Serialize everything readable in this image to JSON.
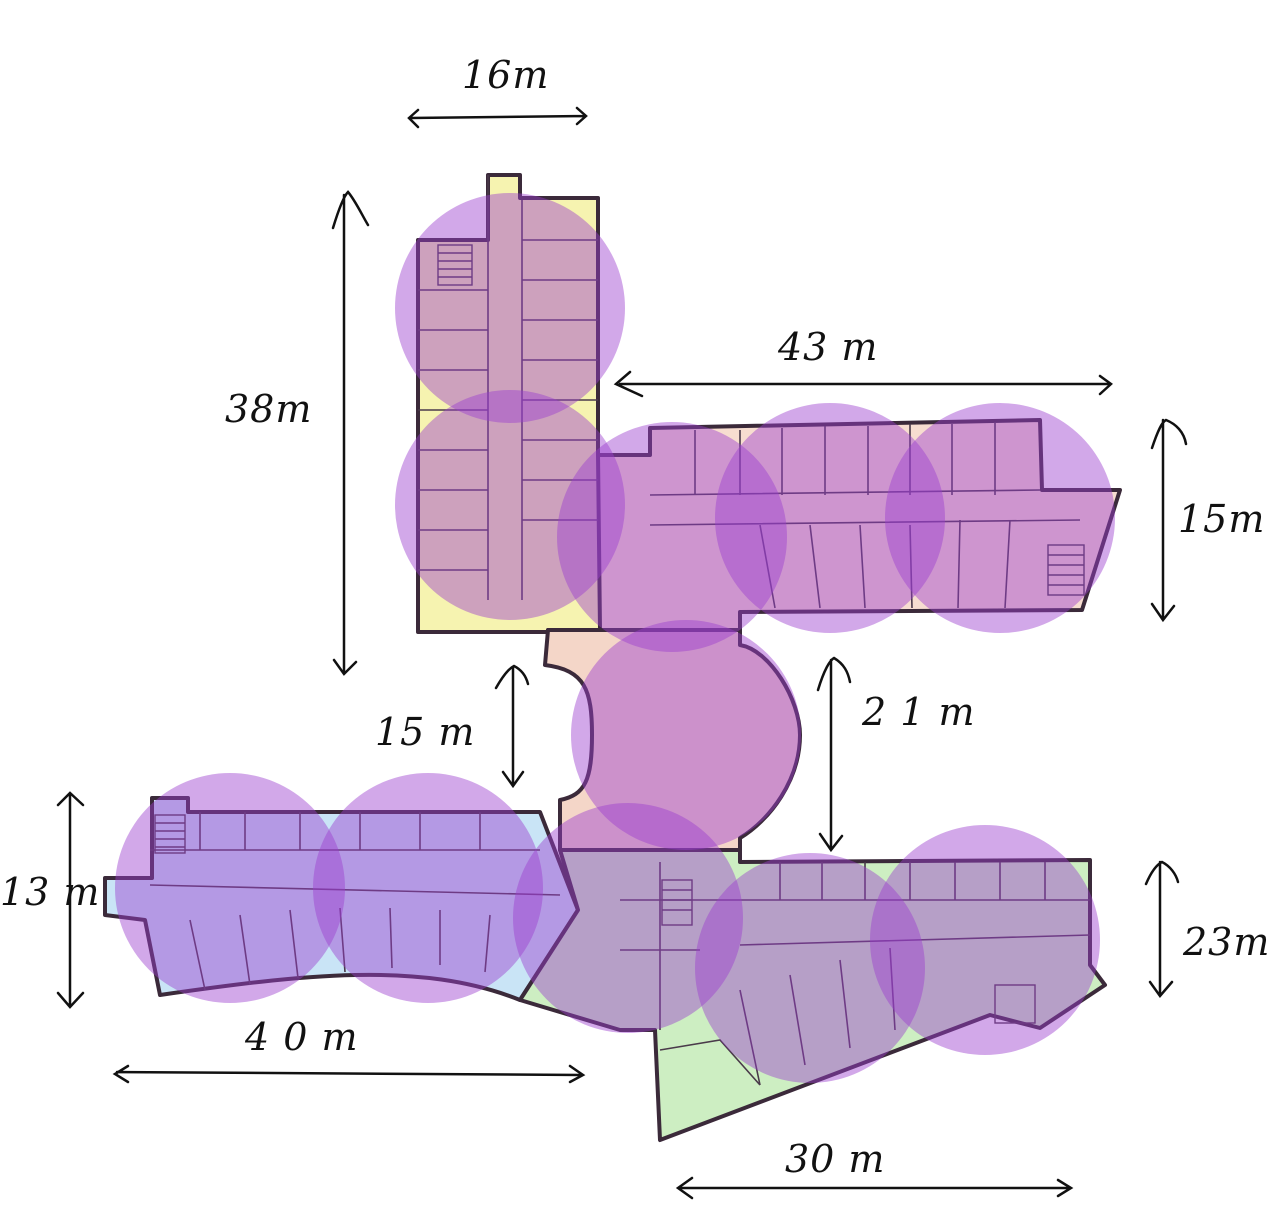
{
  "colors": {
    "wifi_zone": "#9b3fcf",
    "wing_north": "#f6f3b0",
    "wing_east": "#f7ddd0",
    "wing_west": "#c9e4f6",
    "wing_south": "#cdeec2",
    "rotunda": "#f4d6c8",
    "walls": "#3b2a3a"
  },
  "dimensions": {
    "north_width": "16m",
    "north_height": "38m",
    "east_width": "43 m",
    "east_height": "15m",
    "gap_left": "15 m",
    "gap_right": "2 1 m",
    "west_height": "13 m",
    "west_width": "4 0 m",
    "south_height": "23m",
    "south_width": "30 m"
  }
}
